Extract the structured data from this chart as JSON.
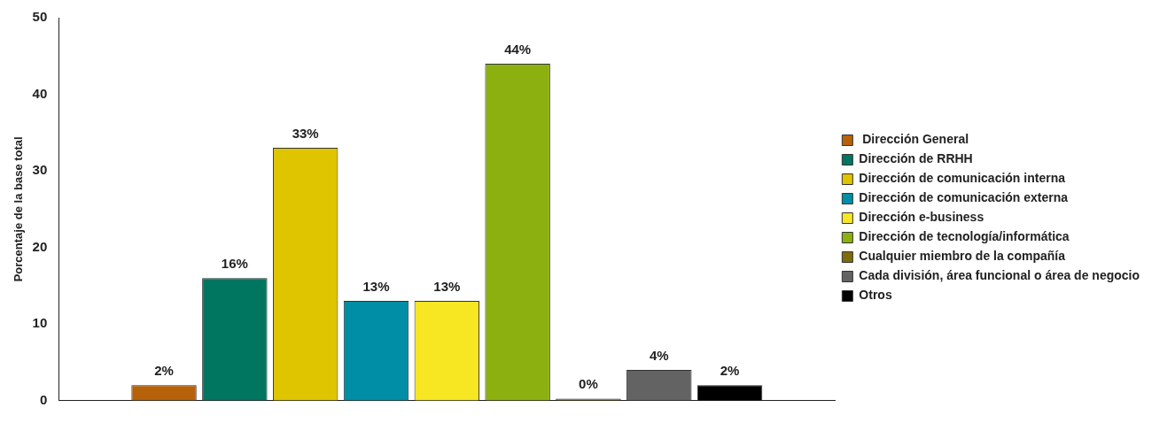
{
  "chart_data": {
    "type": "bar",
    "ylabel": "Porcentaje de la base total",
    "categories": [
      null
    ],
    "ylim": [
      0,
      50
    ],
    "yticks": [
      0,
      10,
      20,
      30,
      40,
      50
    ],
    "legend": "right",
    "series": [
      {
        "name": " Dirección General",
        "color": "#b5620a",
        "values": [
          2
        ],
        "value_labels": [
          "2%"
        ]
      },
      {
        "name": "Dirección de RRHH",
        "color": "#007560",
        "values": [
          16
        ],
        "value_labels": [
          "16%"
        ]
      },
      {
        "name": "Dirección de comunicación interna",
        "color": "#dfc400",
        "values": [
          33
        ],
        "value_labels": [
          "33%"
        ]
      },
      {
        "name": "Dirección de comunicación externa",
        "color": "#008ea6",
        "values": [
          13
        ],
        "value_labels": [
          "13%"
        ]
      },
      {
        "name": "Dirección e-business",
        "color": "#f7e622",
        "values": [
          13
        ],
        "value_labels": [
          "13%"
        ]
      },
      {
        "name": "Dirección de tecnología/informática",
        "color": "#8cb00f",
        "values": [
          44
        ],
        "value_labels": [
          "44%"
        ]
      },
      {
        "name": "Cualquier miembro de la compañía",
        "color": "#7e6b0a",
        "values": [
          0
        ],
        "value_labels": [
          "0%"
        ]
      },
      {
        "name": "Cada división, área funcional o área de negocio",
        "color": "#636363",
        "values": [
          4
        ],
        "value_labels": [
          "4%"
        ]
      },
      {
        "name": "Otros",
        "color": "#000000",
        "values": [
          2
        ],
        "value_labels": [
          "2%"
        ]
      }
    ]
  }
}
